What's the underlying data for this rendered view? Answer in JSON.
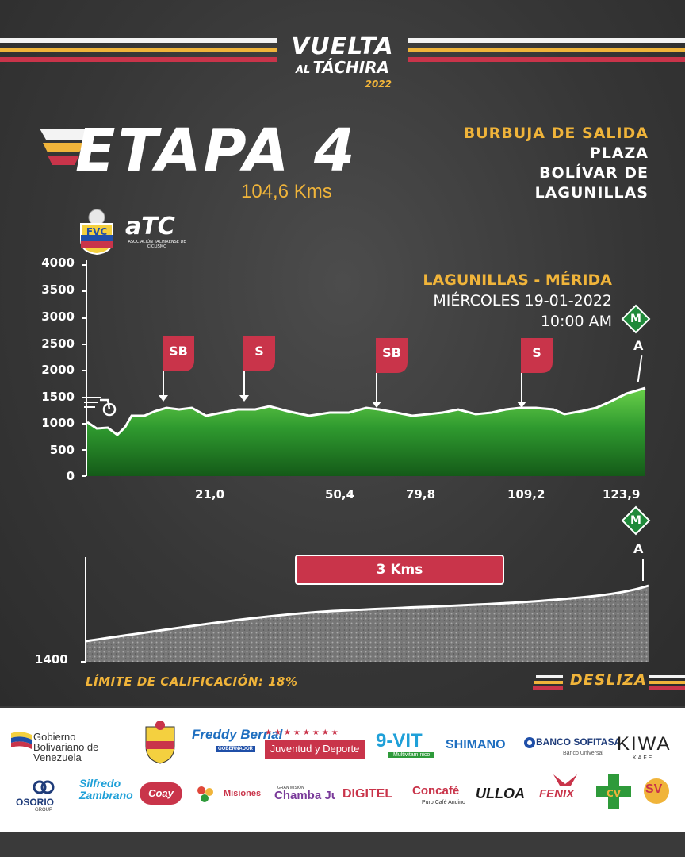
{
  "header": {
    "title_main": "VUELTA",
    "title_al": "AL",
    "title_sub": "TÁCHIRA",
    "title_year": "2022"
  },
  "stage": {
    "name": "ETAPA 4",
    "distance": "104,6 Kms"
  },
  "start": {
    "label": "BURBUJA DE SALIDA",
    "lines": [
      "PLAZA",
      "BOLÍVAR DE",
      "LAGUNILLAS"
    ]
  },
  "logos": {
    "fvc_icon": "fvc-shield-icon",
    "atc_text": "aTC",
    "atc_sub": "ASOCIACIÓN TACHIRENSE DE CICLISMO"
  },
  "route": {
    "title": "LAGUNILLAS - MÉRIDA",
    "date": "MIÉRCOLES 19-01-2022",
    "time": "10:00 AM"
  },
  "profile": {
    "y_ticks": [
      "4000",
      "3500",
      "3000",
      "2500",
      "2000",
      "1500",
      "1000",
      "500",
      "0"
    ],
    "x_ticks": [
      "21,0",
      "50,4",
      "79,8",
      "109,2",
      "123,9"
    ],
    "markers": [
      {
        "label": "SB"
      },
      {
        "label": "S"
      },
      {
        "label": "SB"
      },
      {
        "label": "S"
      }
    ],
    "finish_badge": "M",
    "finish_label": "A",
    "colors": {
      "flag": "#c9344a",
      "accent": "#f0b43a",
      "mountain": "#1f8a3a",
      "terrain": "#3aa53a"
    }
  },
  "final_climb": {
    "banner": "3 Kms",
    "y_label": "1400",
    "finish_badge": "M",
    "finish_label": "A"
  },
  "footer": {
    "limit": "LÍMITE DE CALIFICACIÓN: 18%",
    "swipe": "DESLIZA"
  },
  "sponsors": {
    "row1": [
      "Gobierno Bolivariano de Venezuela",
      "Freddy Bernal",
      "Juventud y Deporte",
      "9-VIT",
      "SHIMANO",
      "BANCO SOFITASA",
      "KIWA"
    ],
    "row1_sub": {
      "freddy": "GOBERNADOR",
      "vit": "Multivitamínico",
      "sofitasa": "Banco Universal",
      "kiwa": "KAFE"
    },
    "row2": [
      "OSORIO",
      "Silfredo Zambrano",
      "Coay",
      "Misiones",
      "Chamba Juvenil",
      "DIGITEL",
      "Concafé",
      "ULLOA",
      "FENIX",
      "SV"
    ],
    "row2_sub": {
      "osorio": "GROUP",
      "concafe": "Puro Café Andino",
      "chamba_pre": "GRAN MISIÓN"
    }
  }
}
